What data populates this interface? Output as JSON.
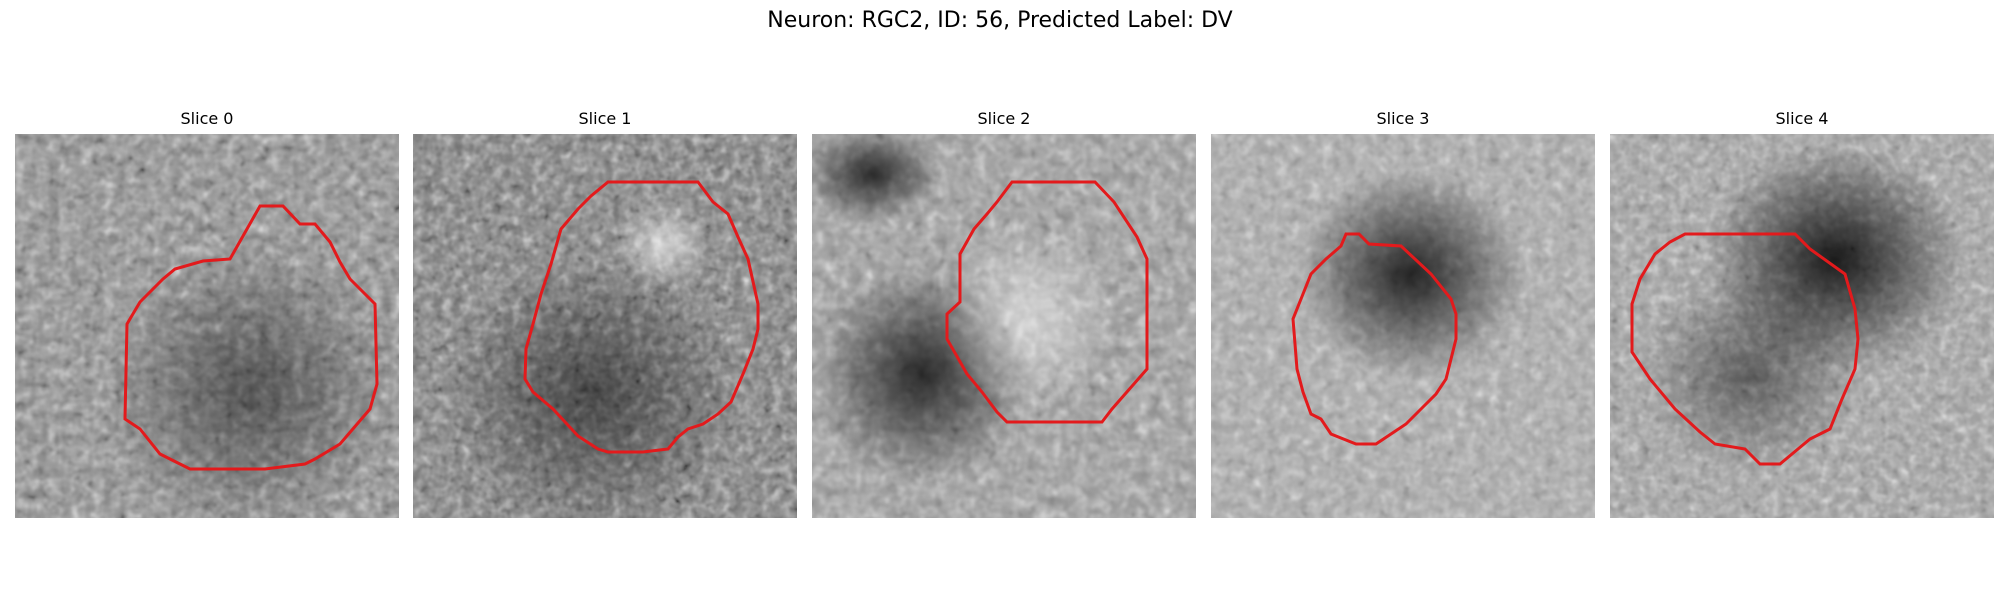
{
  "figure": {
    "title": "Neuron: RGC2, ID: 56, Predicted Label: DV"
  },
  "panels": [
    {
      "title": "Slice 0"
    },
    {
      "title": "Slice 1"
    },
    {
      "title": "Slice 2"
    },
    {
      "title": "Slice 3"
    },
    {
      "title": "Slice 4"
    }
  ],
  "colors": {
    "contour": "#e31a1c"
  }
}
